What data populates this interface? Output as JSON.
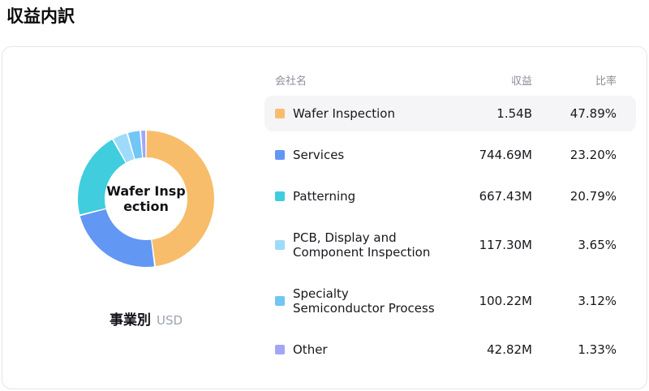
{
  "page_title": "収益内訳",
  "card": {
    "donut": {
      "center_label_lines": [
        "Wafer Insp",
        "ection"
      ],
      "caption": "事業別",
      "caption_unit": "USD"
    },
    "table": {
      "headers": {
        "name": "会社名",
        "revenue": "収益",
        "ratio": "比率"
      }
    }
  },
  "chart_data": {
    "type": "pie",
    "subtype": "donut",
    "title": "収益内訳",
    "caption": "事業別",
    "unit": "USD",
    "center_label": "Wafer Inspection",
    "start_angle_deg": 0,
    "direction": "clockwise",
    "segments": [
      {
        "label": "Wafer Inspection",
        "revenue": "1.54B",
        "ratio_pct": 47.89,
        "ratio_label": "47.89%",
        "color": "#f8bd6b",
        "highlighted": true
      },
      {
        "label": "Services",
        "revenue": "744.69M",
        "ratio_pct": 23.2,
        "ratio_label": "23.20%",
        "color": "#6297f4",
        "highlighted": false
      },
      {
        "label": "Patterning",
        "revenue": "667.43M",
        "ratio_pct": 20.79,
        "ratio_label": "20.79%",
        "color": "#40cdde",
        "highlighted": false
      },
      {
        "label": "PCB, Display and Component Inspection",
        "revenue": "117.30M",
        "ratio_pct": 3.65,
        "ratio_label": "3.65%",
        "color": "#9edbfa",
        "highlighted": false
      },
      {
        "label": "Specialty Semiconductor Process",
        "revenue": "100.22M",
        "ratio_pct": 3.12,
        "ratio_label": "3.12%",
        "color": "#71c6f5",
        "highlighted": false
      },
      {
        "label": "Other",
        "revenue": "42.82M",
        "ratio_pct": 1.33,
        "ratio_label": "1.33%",
        "color": "#a2a6f7",
        "highlighted": false
      }
    ]
  }
}
